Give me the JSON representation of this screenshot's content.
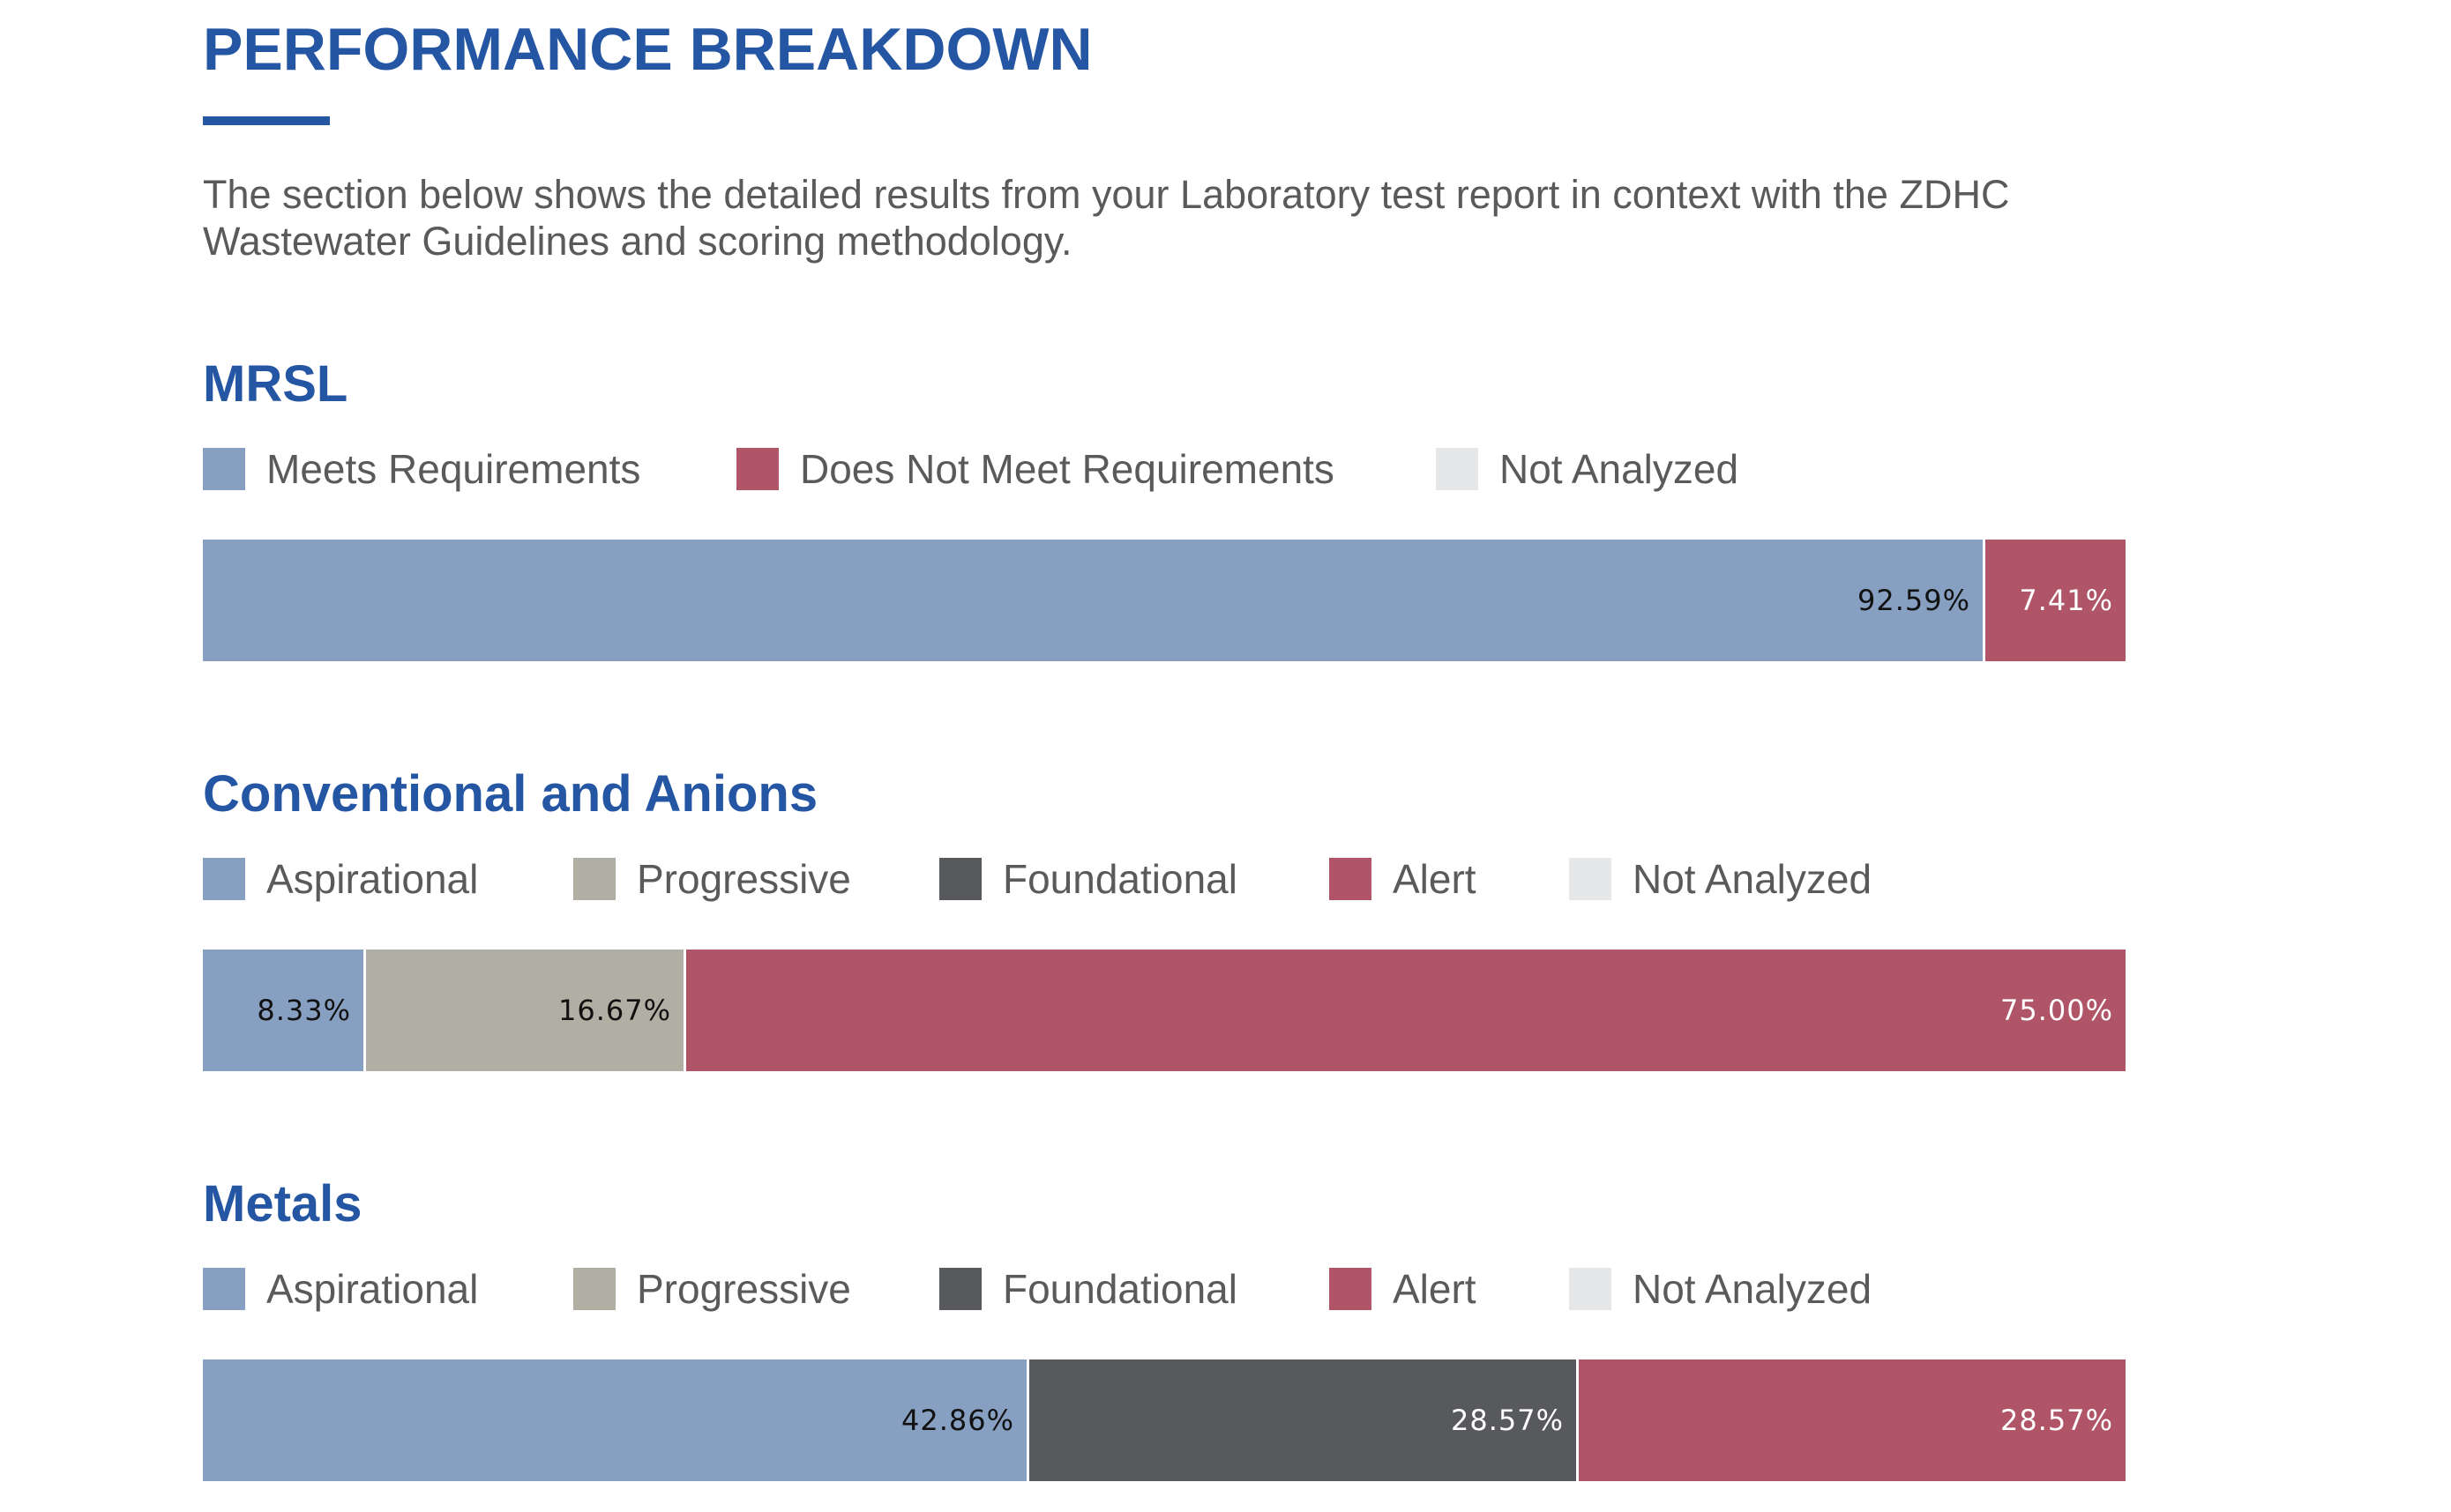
{
  "page": {
    "title": "PERFORMANCE BREAKDOWN",
    "intro": "The section below shows the detailed results from your Laboratory test report in context with the ZDHC Wastewater Guidelines and scoring methodology."
  },
  "colors": {
    "title_blue": "#2456a3",
    "body_text": "#5a5a5d",
    "aspirational": "#87a0c2",
    "meets_requirements": "#87a0c2",
    "progressive": "#b1afa3",
    "foundational": "#58595d",
    "alert": "#b05467",
    "not_analyzed": "#e6e7e8"
  },
  "chart_data": [
    {
      "type": "bar",
      "orientation": "horizontal-stacked-100",
      "title": "MRSL",
      "legend": [
        {
          "name": "Meets Requirements",
          "color": "#87a0c2"
        },
        {
          "name": "Does Not Meet Requirements",
          "color": "#b05467"
        },
        {
          "name": "Not Analyzed",
          "color": "#e6e7e8"
        }
      ],
      "series": [
        {
          "name": "Meets Requirements",
          "value": 92.59,
          "label": "92.59%",
          "color": "#87a0c2",
          "label_color": "#111111"
        },
        {
          "name": "Does Not Meet Requirements",
          "value": 7.41,
          "label": "7.41%",
          "color": "#b05467",
          "label_color": "#ffffff"
        }
      ],
      "xlim": [
        0,
        100
      ]
    },
    {
      "type": "bar",
      "orientation": "horizontal-stacked-100",
      "title": "Conventional and Anions",
      "legend": [
        {
          "name": "Aspirational",
          "color": "#87a0c2"
        },
        {
          "name": "Progressive",
          "color": "#b1afa3"
        },
        {
          "name": "Foundational",
          "color": "#58595d"
        },
        {
          "name": "Alert",
          "color": "#b05467"
        },
        {
          "name": "Not Analyzed",
          "color": "#e6e7e8"
        }
      ],
      "series": [
        {
          "name": "Aspirational",
          "value": 8.33,
          "label": "8.33%",
          "color": "#87a0c2",
          "label_color": "#111111"
        },
        {
          "name": "Progressive",
          "value": 16.67,
          "label": "16.67%",
          "color": "#b1afa3",
          "label_color": "#111111"
        },
        {
          "name": "Alert",
          "value": 75.0,
          "label": "75.00%",
          "color": "#b05467",
          "label_color": "#ffffff"
        }
      ],
      "xlim": [
        0,
        100
      ]
    },
    {
      "type": "bar",
      "orientation": "horizontal-stacked-100",
      "title": "Metals",
      "legend": [
        {
          "name": "Aspirational",
          "color": "#87a0c2"
        },
        {
          "name": "Progressive",
          "color": "#b1afa3"
        },
        {
          "name": "Foundational",
          "color": "#58595d"
        },
        {
          "name": "Alert",
          "color": "#b05467"
        },
        {
          "name": "Not Analyzed",
          "color": "#e6e7e8"
        }
      ],
      "series": [
        {
          "name": "Aspirational",
          "value": 42.86,
          "label": "42.86%",
          "color": "#87a0c2",
          "label_color": "#111111"
        },
        {
          "name": "Foundational",
          "value": 28.57,
          "label": "28.57%",
          "color": "#58595d",
          "label_color": "#ffffff"
        },
        {
          "name": "Alert",
          "value": 28.57,
          "label": "28.57%",
          "color": "#b05467",
          "label_color": "#ffffff"
        }
      ],
      "xlim": [
        0,
        100
      ]
    }
  ]
}
